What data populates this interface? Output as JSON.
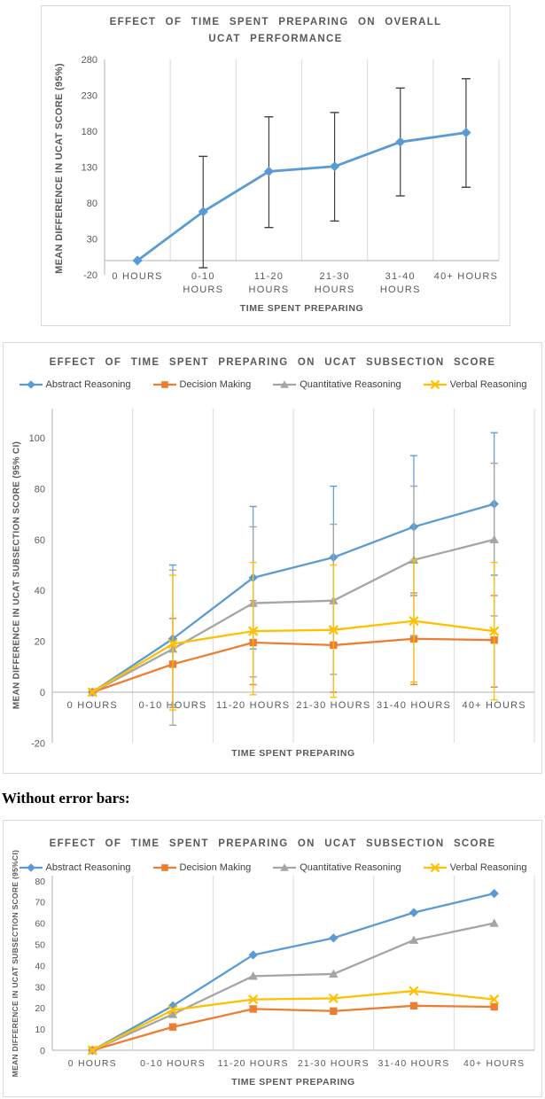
{
  "note": "Without error bars:",
  "colors": {
    "abstract_blue": "#5B9BD5",
    "decision_orange": "#ED7D31",
    "quantitative_gray": "#A5A5A5",
    "verbal_yellow": "#FFC000",
    "title_text": "#595959",
    "legend_text": "#404040",
    "gridline": "#D9D9D9",
    "axis_line": "#BFBFBF",
    "error_bar_dark": "#404040",
    "box_border": "#D9D9D9"
  },
  "chart_data": [
    {
      "type": "line",
      "title": "EFFECT OF TIME SPENT PREPARING ON OVERALL UCAT PERFORMANCE",
      "title_lines": [
        "EFFECT OF TIME SPENT PREPARING ON OVERALL",
        "UCAT PERFORMANCE"
      ],
      "xlabel": "TIME SPENT PREPARING",
      "ylabel": "MEAN DIFFERENCE IN UCAT SCORE (95%)",
      "categories": [
        "0 HOURS",
        "0-10 HOURS",
        "11-20 HOURS",
        "21-30 HOURS",
        "31-40 HOURS",
        "40+ HOURS"
      ],
      "label_lines": [
        [
          "0 HOURS"
        ],
        [
          "0-10",
          "HOURS"
        ],
        [
          "11-20",
          "HOURS"
        ],
        [
          "21-30",
          "HOURS"
        ],
        [
          "31-40",
          "HOURS"
        ],
        [
          "40+ HOURS"
        ]
      ],
      "ylim": [
        -20,
        280
      ],
      "yticks": [
        -20,
        30,
        80,
        130,
        180,
        230,
        280
      ],
      "grid": "vertical-only",
      "legend_position": "none",
      "error_bars": true,
      "error_bar_color": "#404040",
      "series": [
        {
          "name": "Overall UCAT score",
          "color": "#5B9BD5",
          "marker": "diamond",
          "values": [
            0,
            68,
            124,
            131,
            165,
            178
          ],
          "err_low": [
            null,
            -10,
            46,
            55,
            90,
            102
          ],
          "err_high": [
            null,
            145,
            200,
            206,
            240,
            253
          ]
        }
      ]
    },
    {
      "type": "line",
      "title": "EFFECT OF TIME SPENT PREPARING ON UCAT SUBSECTION SCORE",
      "title_lines": [
        "EFFECT OF TIME SPENT PREPARING ON UCAT SUBSECTION SCORE"
      ],
      "xlabel": "TIME SPENT PREPARING",
      "ylabel": "MEAN DIFFERENCE IN UCAT SUBSECTION SCORE (95% CI)",
      "categories": [
        "0 HOURS",
        "0-10 HOURS",
        "11-20 HOURS",
        "21-30 HOURS",
        "31-40 HOURS",
        "40+ HOURS"
      ],
      "label_lines": [
        [
          "0 HOURS"
        ],
        [
          "0-10 HOURS"
        ],
        [
          "11-20 HOURS"
        ],
        [
          "21-30 HOURS"
        ],
        [
          "31-40 HOURS"
        ],
        [
          "40+ HOURS"
        ]
      ],
      "ylim": [
        -20,
        110
      ],
      "yticks": [
        -20,
        0,
        20,
        40,
        60,
        80,
        100
      ],
      "grid": "vertical-only",
      "legend_position": "top",
      "error_bars": true,
      "series": [
        {
          "name": "Abstract Reasoning",
          "color": "#5B9BD5",
          "marker": "diamond",
          "values": [
            0,
            21,
            45,
            53,
            65,
            74
          ],
          "err_low": [
            null,
            -5,
            17,
            25,
            38,
            46
          ],
          "err_high": [
            null,
            50,
            73,
            81,
            93,
            102
          ]
        },
        {
          "name": "Decision Making",
          "color": "#ED7D31",
          "marker": "square",
          "values": [
            0,
            11,
            19.5,
            18.5,
            21,
            20.5
          ],
          "err_low": [
            null,
            -6,
            3,
            0,
            3,
            2
          ],
          "err_high": [
            null,
            29,
            36,
            35,
            39,
            38
          ]
        },
        {
          "name": "Quantitative Reasoning",
          "color": "#A5A5A5",
          "marker": "triangle",
          "values": [
            0,
            17,
            35,
            36,
            52,
            60
          ],
          "err_low": [
            null,
            -13,
            6,
            7,
            22,
            30
          ],
          "err_high": [
            null,
            48,
            65,
            66,
            81,
            90
          ]
        },
        {
          "name": "Verbal Reasoning",
          "color": "#FFC000",
          "marker": "x",
          "values": [
            0,
            19,
            24,
            24.5,
            28,
            24
          ],
          "err_low": [
            null,
            -7,
            -1,
            -2,
            4,
            -3
          ],
          "err_high": [
            null,
            46,
            51,
            50,
            52,
            51
          ]
        }
      ]
    },
    {
      "type": "line",
      "title": "EFFECT OF TIME SPENT PREPARING ON UCAT SUBSECTION SCORE",
      "title_lines": [
        "EFFECT OF TIME SPENT PREPARING ON UCAT SUBSECTION SCORE"
      ],
      "xlabel": "TIME SPENT PREPARING",
      "ylabel": "MEAN DIFFERENCE IN UCAT SUBSECTION SCORE (95%CI)",
      "categories": [
        "0 HOURS",
        "0-10 HOURS",
        "11-20 HOURS",
        "21-30 HOURS",
        "31-40 HOURS",
        "40+ HOURS"
      ],
      "label_lines": [
        [
          "0 HOURS"
        ],
        [
          "0-10 HOURS"
        ],
        [
          "11-20 HOURS"
        ],
        [
          "21-30 HOURS"
        ],
        [
          "31-40 HOURS"
        ],
        [
          "40+ HOURS"
        ]
      ],
      "ylim": [
        0,
        83
      ],
      "yticks": [
        0,
        10,
        20,
        30,
        40,
        50,
        60,
        70,
        80
      ],
      "grid": "vertical-only",
      "legend_position": "top",
      "error_bars": false,
      "series": [
        {
          "name": "Abstract Reasoning",
          "color": "#5B9BD5",
          "marker": "diamond",
          "values": [
            0,
            21,
            45,
            53,
            65,
            74
          ]
        },
        {
          "name": "Decision Making",
          "color": "#ED7D31",
          "marker": "square",
          "values": [
            0,
            11,
            19.5,
            18.5,
            21,
            20.5
          ]
        },
        {
          "name": "Quantitative Reasoning",
          "color": "#A5A5A5",
          "marker": "triangle",
          "values": [
            0,
            17,
            35,
            36,
            52,
            60
          ]
        },
        {
          "name": "Verbal Reasoning",
          "color": "#FFC000",
          "marker": "x",
          "values": [
            0,
            19,
            24,
            24.5,
            28,
            24
          ]
        }
      ]
    }
  ]
}
